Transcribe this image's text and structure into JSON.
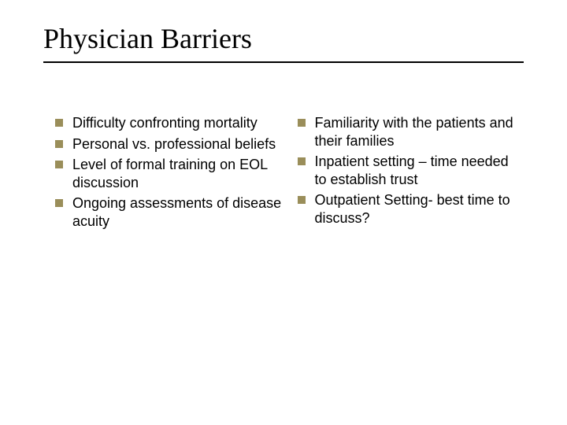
{
  "slide": {
    "title": "Physician Barriers",
    "title_font_family": "Times New Roman",
    "title_font_size_pt": 36,
    "title_color": "#000000",
    "rule_color": "#000000",
    "background_color": "#ffffff",
    "bullet_marker_color": "#9a8e5a",
    "body_font_family": "Arial",
    "body_font_size_pt": 18,
    "body_color": "#000000",
    "columns": {
      "left": {
        "items": [
          {
            "text": "Difficulty confronting mortality"
          },
          {
            "text": "Personal vs. professional beliefs"
          },
          {
            "text": "Level of formal training on EOL discussion"
          },
          {
            "text": "Ongoing assessments of disease acuity"
          }
        ]
      },
      "right": {
        "items": [
          {
            "text": "Familiarity with the patients and their families"
          },
          {
            "text": "Inpatient setting – time needed to establish trust"
          },
          {
            "text": "Outpatient Setting- best time to discuss?"
          }
        ]
      }
    }
  }
}
